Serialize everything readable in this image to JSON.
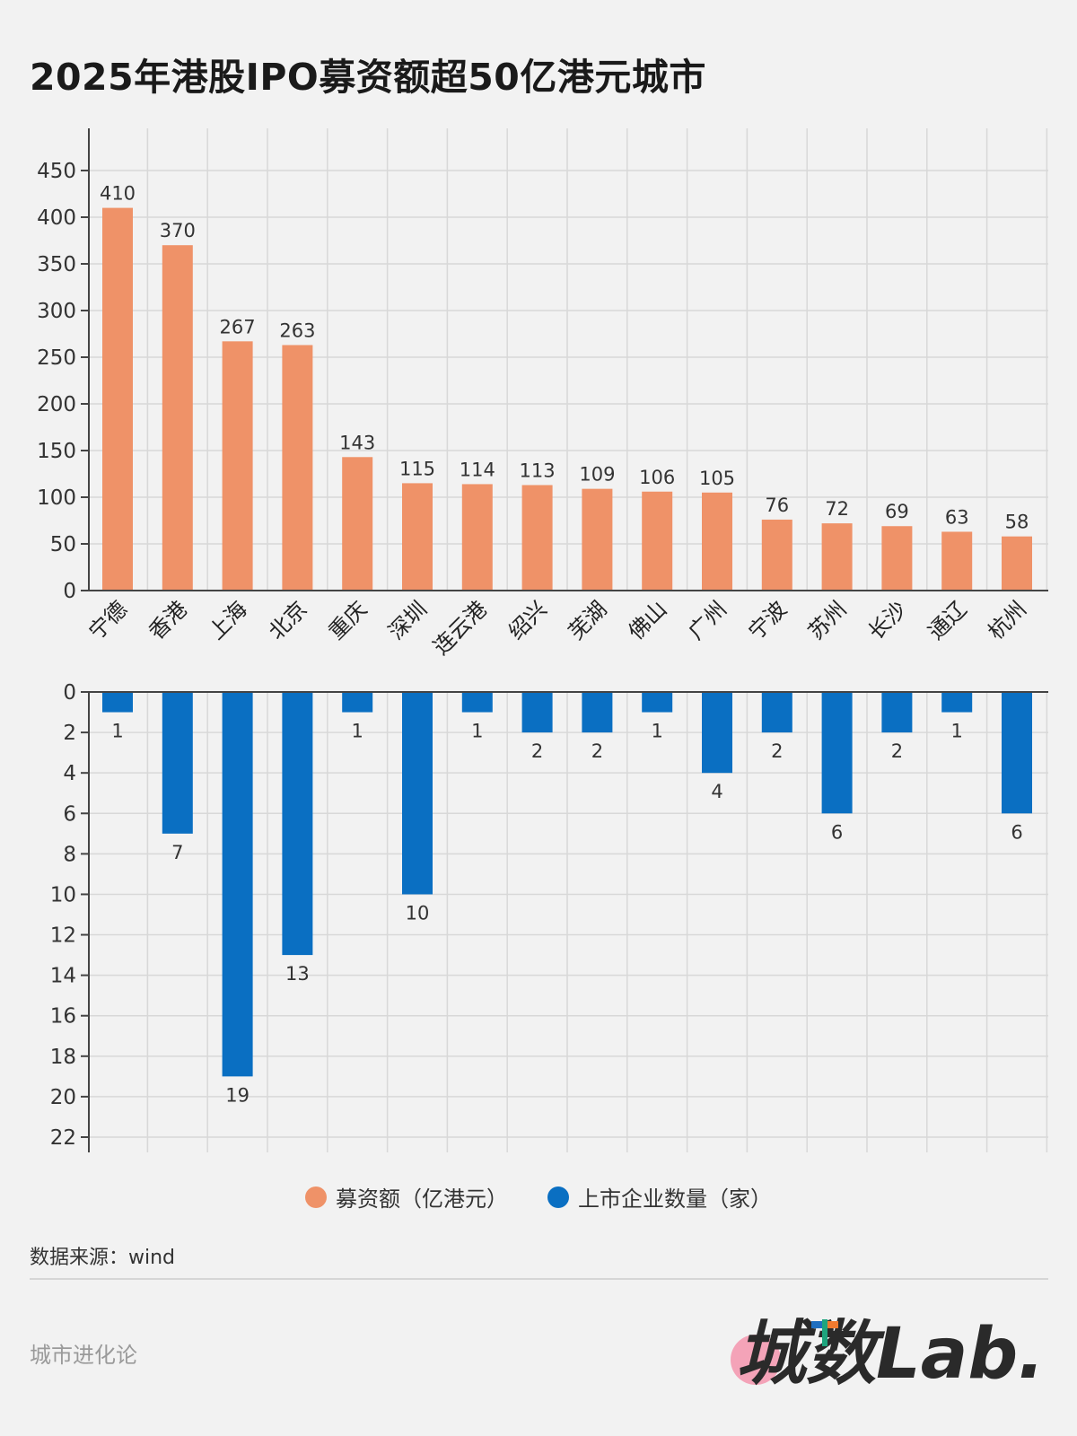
{
  "title": "2025年港股IPO募资额超50亿港元城市",
  "chart_data": [
    {
      "type": "bar",
      "categories": [
        "宁德",
        "香港",
        "上海",
        "北京",
        "重庆",
        "深圳",
        "连云港",
        "绍兴",
        "芜湖",
        "佛山",
        "广州",
        "宁波",
        "苏州",
        "长沙",
        "通辽",
        "杭州"
      ],
      "series": [
        {
          "name": "募资额（亿港元）",
          "values": [
            410,
            370,
            267,
            263,
            143,
            115,
            114,
            113,
            109,
            106,
            105,
            76,
            72,
            69,
            63,
            58
          ],
          "color": "#ef9268"
        }
      ],
      "ylim": [
        0,
        480
      ],
      "yticks": [
        0,
        50,
        100,
        150,
        200,
        250,
        300,
        350,
        400,
        450
      ],
      "grid": true,
      "data_labels": true
    },
    {
      "type": "bar",
      "orientation": "downward",
      "categories": [
        "宁德",
        "香港",
        "上海",
        "北京",
        "重庆",
        "深圳",
        "连云港",
        "绍兴",
        "芜湖",
        "佛山",
        "广州",
        "宁波",
        "苏州",
        "长沙",
        "通辽",
        "杭州"
      ],
      "series": [
        {
          "name": "上市企业数量（家）",
          "values": [
            1,
            7,
            19,
            13,
            1,
            10,
            1,
            2,
            2,
            1,
            4,
            2,
            6,
            2,
            1,
            6
          ],
          "color": "#0a6fc2"
        }
      ],
      "ylim": [
        0,
        22.8
      ],
      "yticks": [
        0,
        2,
        4,
        6,
        8,
        10,
        12,
        14,
        16,
        18,
        20,
        22
      ],
      "grid": true,
      "data_labels": true
    }
  ],
  "legend": [
    {
      "label": "募资额（亿港元）",
      "color": "#ef9268"
    },
    {
      "label": "上市企业数量（家）",
      "color": "#0a6fc2"
    }
  ],
  "source": "数据来源：wind",
  "footer": "城市进化论",
  "logo_text": "城数Lab."
}
